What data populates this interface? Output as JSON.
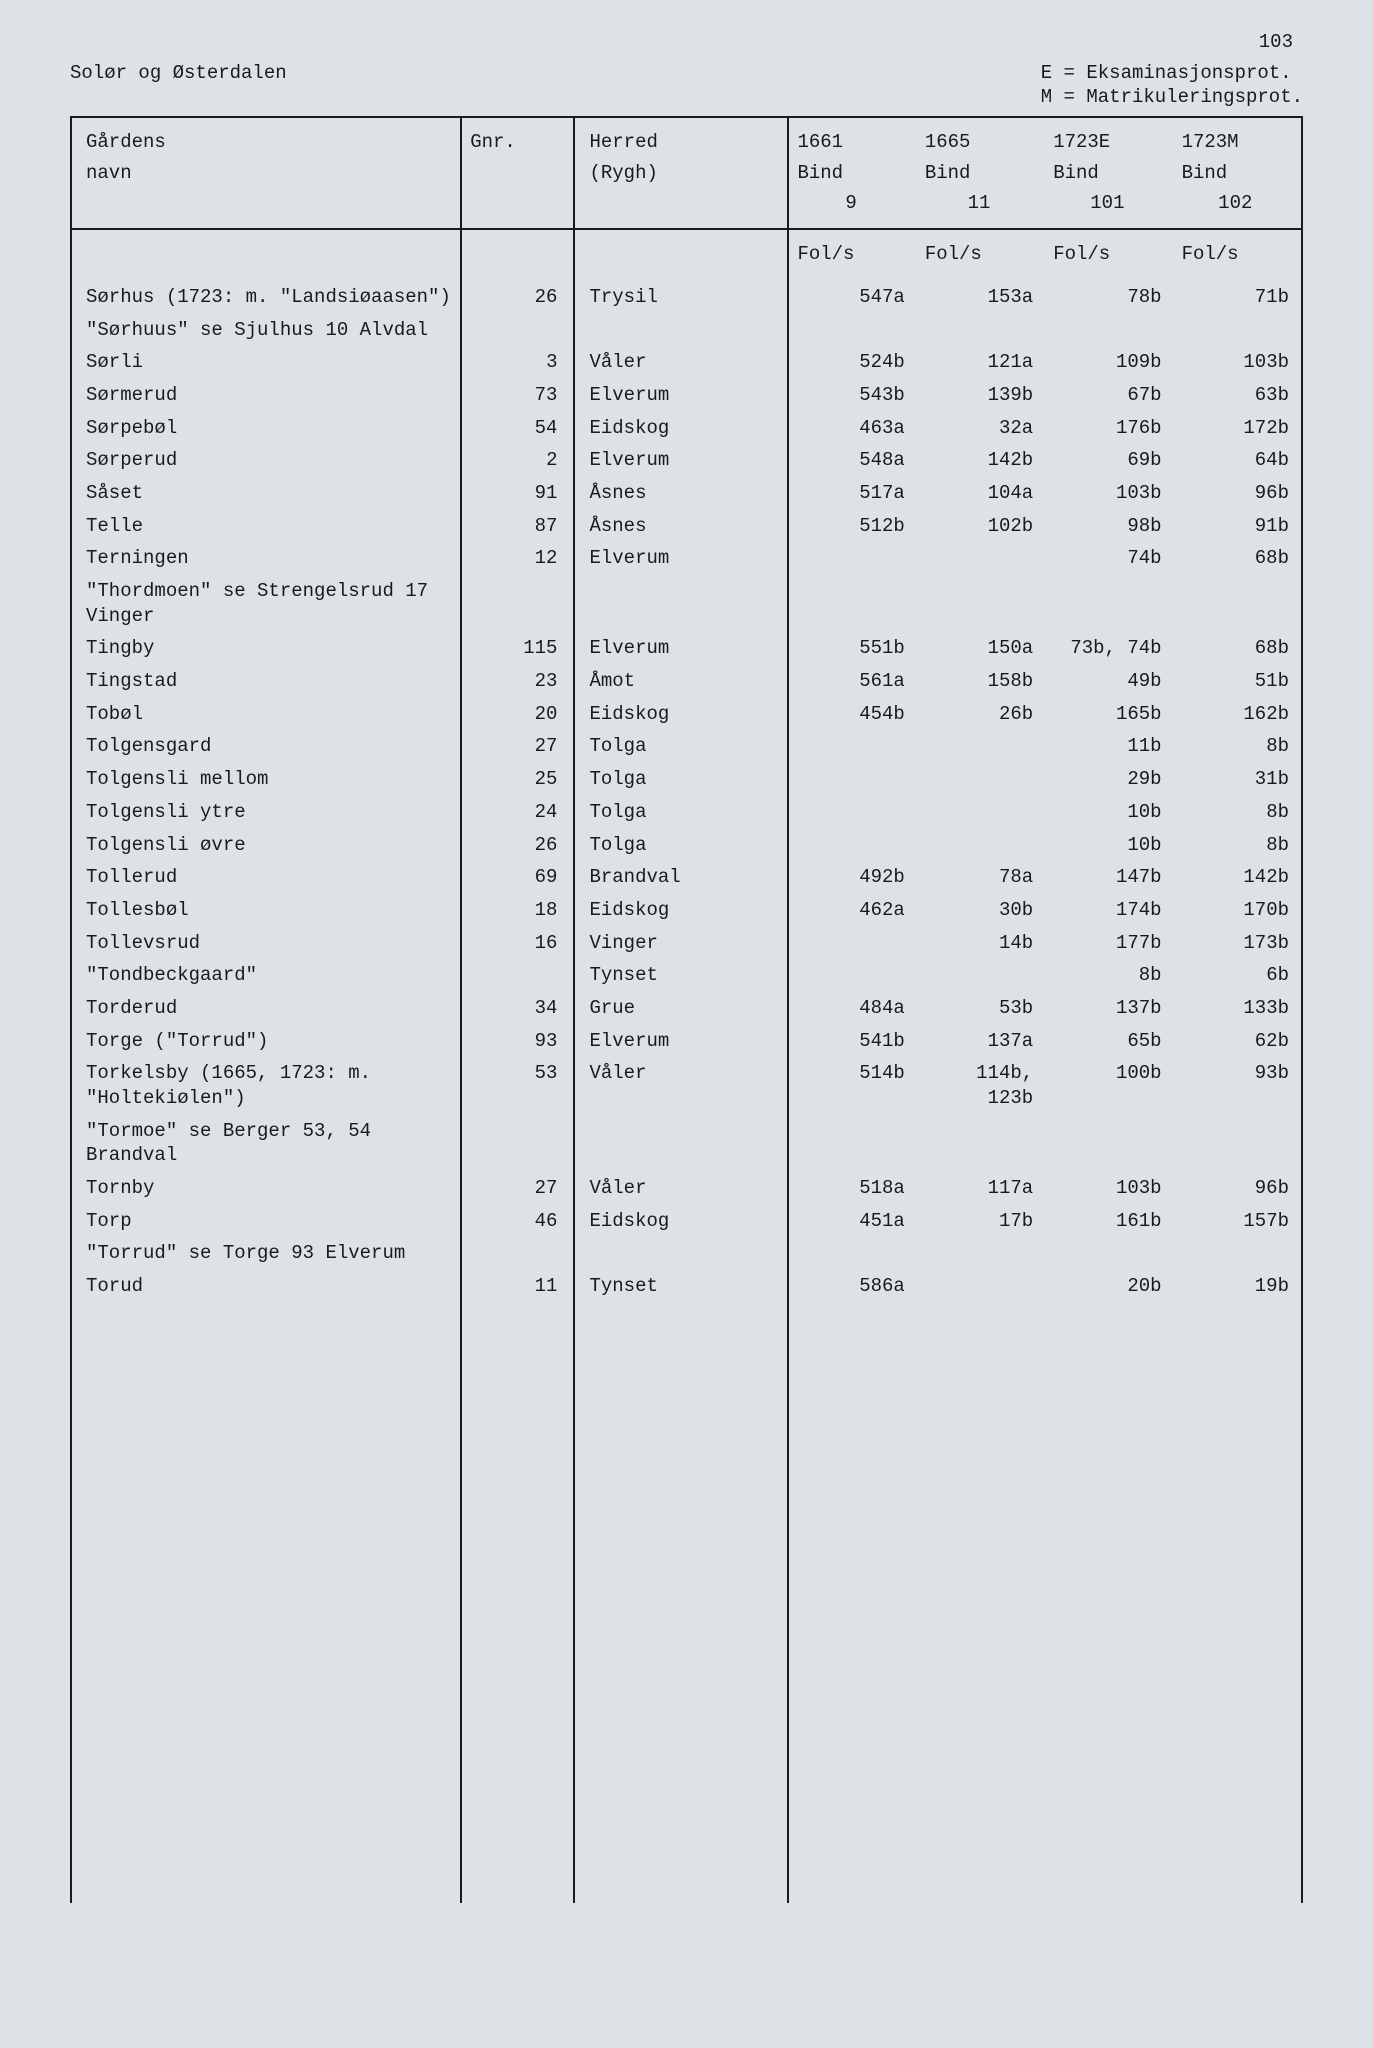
{
  "page_number": "103",
  "region_title": "Solør og Østerdalen",
  "legend": {
    "line1": "E = Eksaminasjonsprot.",
    "line2": "M = Matrikuleringsprot."
  },
  "columns": {
    "name_l1": "Gårdens",
    "name_l2": "navn",
    "gnr": "Gnr.",
    "herred_l1": "Herred",
    "herred_l2": "(Rygh)",
    "y1_l1": "1661",
    "y1_l2": "Bind",
    "y1_l3": "9",
    "y2_l1": "1665",
    "y2_l2": "Bind",
    "y2_l3": "11",
    "y3_l1": "1723E",
    "y3_l2": "Bind",
    "y3_l3": "101",
    "y4_l1": "1723M",
    "y4_l2": "Bind",
    "y4_l3": "102",
    "fols": "Fol/s"
  },
  "rows": [
    {
      "name": "Sørhus (1723: m. \"Landsiøaasen\")",
      "gnr": "26",
      "herred": "Trysil",
      "y1": "547a",
      "y2": "153a",
      "y3": "78b",
      "y4": "71b"
    },
    {
      "name": "\"Sørhuus\" se Sjulhus 10 Alvdal",
      "gnr": "",
      "herred": "",
      "y1": "",
      "y2": "",
      "y3": "",
      "y4": ""
    },
    {
      "name": "Sørli",
      "gnr": "3",
      "herred": "Våler",
      "y1": "524b",
      "y2": "121a",
      "y3": "109b",
      "y4": "103b"
    },
    {
      "name": "Sørmerud",
      "gnr": "73",
      "herred": "Elverum",
      "y1": "543b",
      "y2": "139b",
      "y3": "67b",
      "y4": "63b"
    },
    {
      "name": "Sørpebøl",
      "gnr": "54",
      "herred": "Eidskog",
      "y1": "463a",
      "y2": "32a",
      "y3": "176b",
      "y4": "172b"
    },
    {
      "name": "Sørperud",
      "gnr": "2",
      "herred": "Elverum",
      "y1": "548a",
      "y2": "142b",
      "y3": "69b",
      "y4": "64b"
    },
    {
      "name": "Såset",
      "gnr": "91",
      "herred": "Åsnes",
      "y1": "517a",
      "y2": "104a",
      "y3": "103b",
      "y4": "96b"
    },
    {
      "name": "Telle",
      "gnr": "87",
      "herred": "Åsnes",
      "y1": "512b",
      "y2": "102b",
      "y3": "98b",
      "y4": "91b"
    },
    {
      "name": "Terningen",
      "gnr": "12",
      "herred": "Elverum",
      "y1": "",
      "y2": "",
      "y3": "74b",
      "y4": "68b"
    },
    {
      "name": "\"Thordmoen\" se Strengelsrud 17 Vinger",
      "gnr": "",
      "herred": "",
      "y1": "",
      "y2": "",
      "y3": "",
      "y4": ""
    },
    {
      "name": "Tingby",
      "gnr": "115",
      "herred": "Elverum",
      "y1": "551b",
      "y2": "150a",
      "y3": "73b, 74b",
      "y4": "68b"
    },
    {
      "name": "Tingstad",
      "gnr": "23",
      "herred": "Åmot",
      "y1": "561a",
      "y2": "158b",
      "y3": "49b",
      "y4": "51b"
    },
    {
      "name": "Tobøl",
      "gnr": "20",
      "herred": "Eidskog",
      "y1": "454b",
      "y2": "26b",
      "y3": "165b",
      "y4": "162b"
    },
    {
      "name": "Tolgensgard",
      "gnr": "27",
      "herred": "Tolga",
      "y1": "",
      "y2": "",
      "y3": "11b",
      "y4": "8b"
    },
    {
      "name": "Tolgensli mellom",
      "gnr": "25",
      "herred": "Tolga",
      "y1": "",
      "y2": "",
      "y3": "29b",
      "y4": "31b"
    },
    {
      "name": "Tolgensli ytre",
      "gnr": "24",
      "herred": "Tolga",
      "y1": "",
      "y2": "",
      "y3": "10b",
      "y4": "8b"
    },
    {
      "name": "Tolgensli øvre",
      "gnr": "26",
      "herred": "Tolga",
      "y1": "",
      "y2": "",
      "y3": "10b",
      "y4": "8b"
    },
    {
      "name": "Tollerud",
      "gnr": "69",
      "herred": "Brandval",
      "y1": "492b",
      "y2": "78a",
      "y3": "147b",
      "y4": "142b"
    },
    {
      "name": "Tollesbøl",
      "gnr": "18",
      "herred": "Eidskog",
      "y1": "462a",
      "y2": "30b",
      "y3": "174b",
      "y4": "170b"
    },
    {
      "name": "Tollevsrud",
      "gnr": "16",
      "herred": "Vinger",
      "y1": "",
      "y2": "14b",
      "y3": "177b",
      "y4": "173b"
    },
    {
      "name": "\"Tondbeckgaard\"",
      "gnr": "",
      "herred": "Tynset",
      "y1": "",
      "y2": "",
      "y3": "8b",
      "y4": "6b"
    },
    {
      "name": "Torderud",
      "gnr": "34",
      "herred": "Grue",
      "y1": "484a",
      "y2": "53b",
      "y3": "137b",
      "y4": "133b"
    },
    {
      "name": "Torge (\"Torrud\")",
      "gnr": "93",
      "herred": "Elverum",
      "y1": "541b",
      "y2": "137a",
      "y3": "65b",
      "y4": "62b"
    },
    {
      "name": "Torkelsby (1665, 1723: m. \"Holtekiølen\")",
      "gnr": "53",
      "herred": "Våler",
      "y1": "514b",
      "y2": "114b, 123b",
      "y3": "100b",
      "y4": "93b"
    },
    {
      "name": "\"Tormoe\" se Berger 53, 54 Brandval",
      "gnr": "",
      "herred": "",
      "y1": "",
      "y2": "",
      "y3": "",
      "y4": ""
    },
    {
      "name": "Tornby",
      "gnr": "27",
      "herred": "Våler",
      "y1": "518a",
      "y2": "117a",
      "y3": "103b",
      "y4": "96b"
    },
    {
      "name": "Torp",
      "gnr": "46",
      "herred": "Eidskog",
      "y1": "451a",
      "y2": "17b",
      "y3": "161b",
      "y4": "157b"
    },
    {
      "name": "\"Torrud\" se Torge 93 Elverum",
      "gnr": "",
      "herred": "",
      "y1": "",
      "y2": "",
      "y3": "",
      "y4": ""
    },
    {
      "name": "Torud",
      "gnr": "11",
      "herred": "Tynset",
      "y1": "586a",
      "y2": "",
      "y3": "20b",
      "y4": "19b"
    }
  ],
  "style": {
    "background_color": "#dde2e7",
    "text_color": "#1a1a1a",
    "border_color": "#1a1a1a",
    "font_family": "Courier New",
    "font_size_pt": 14
  }
}
